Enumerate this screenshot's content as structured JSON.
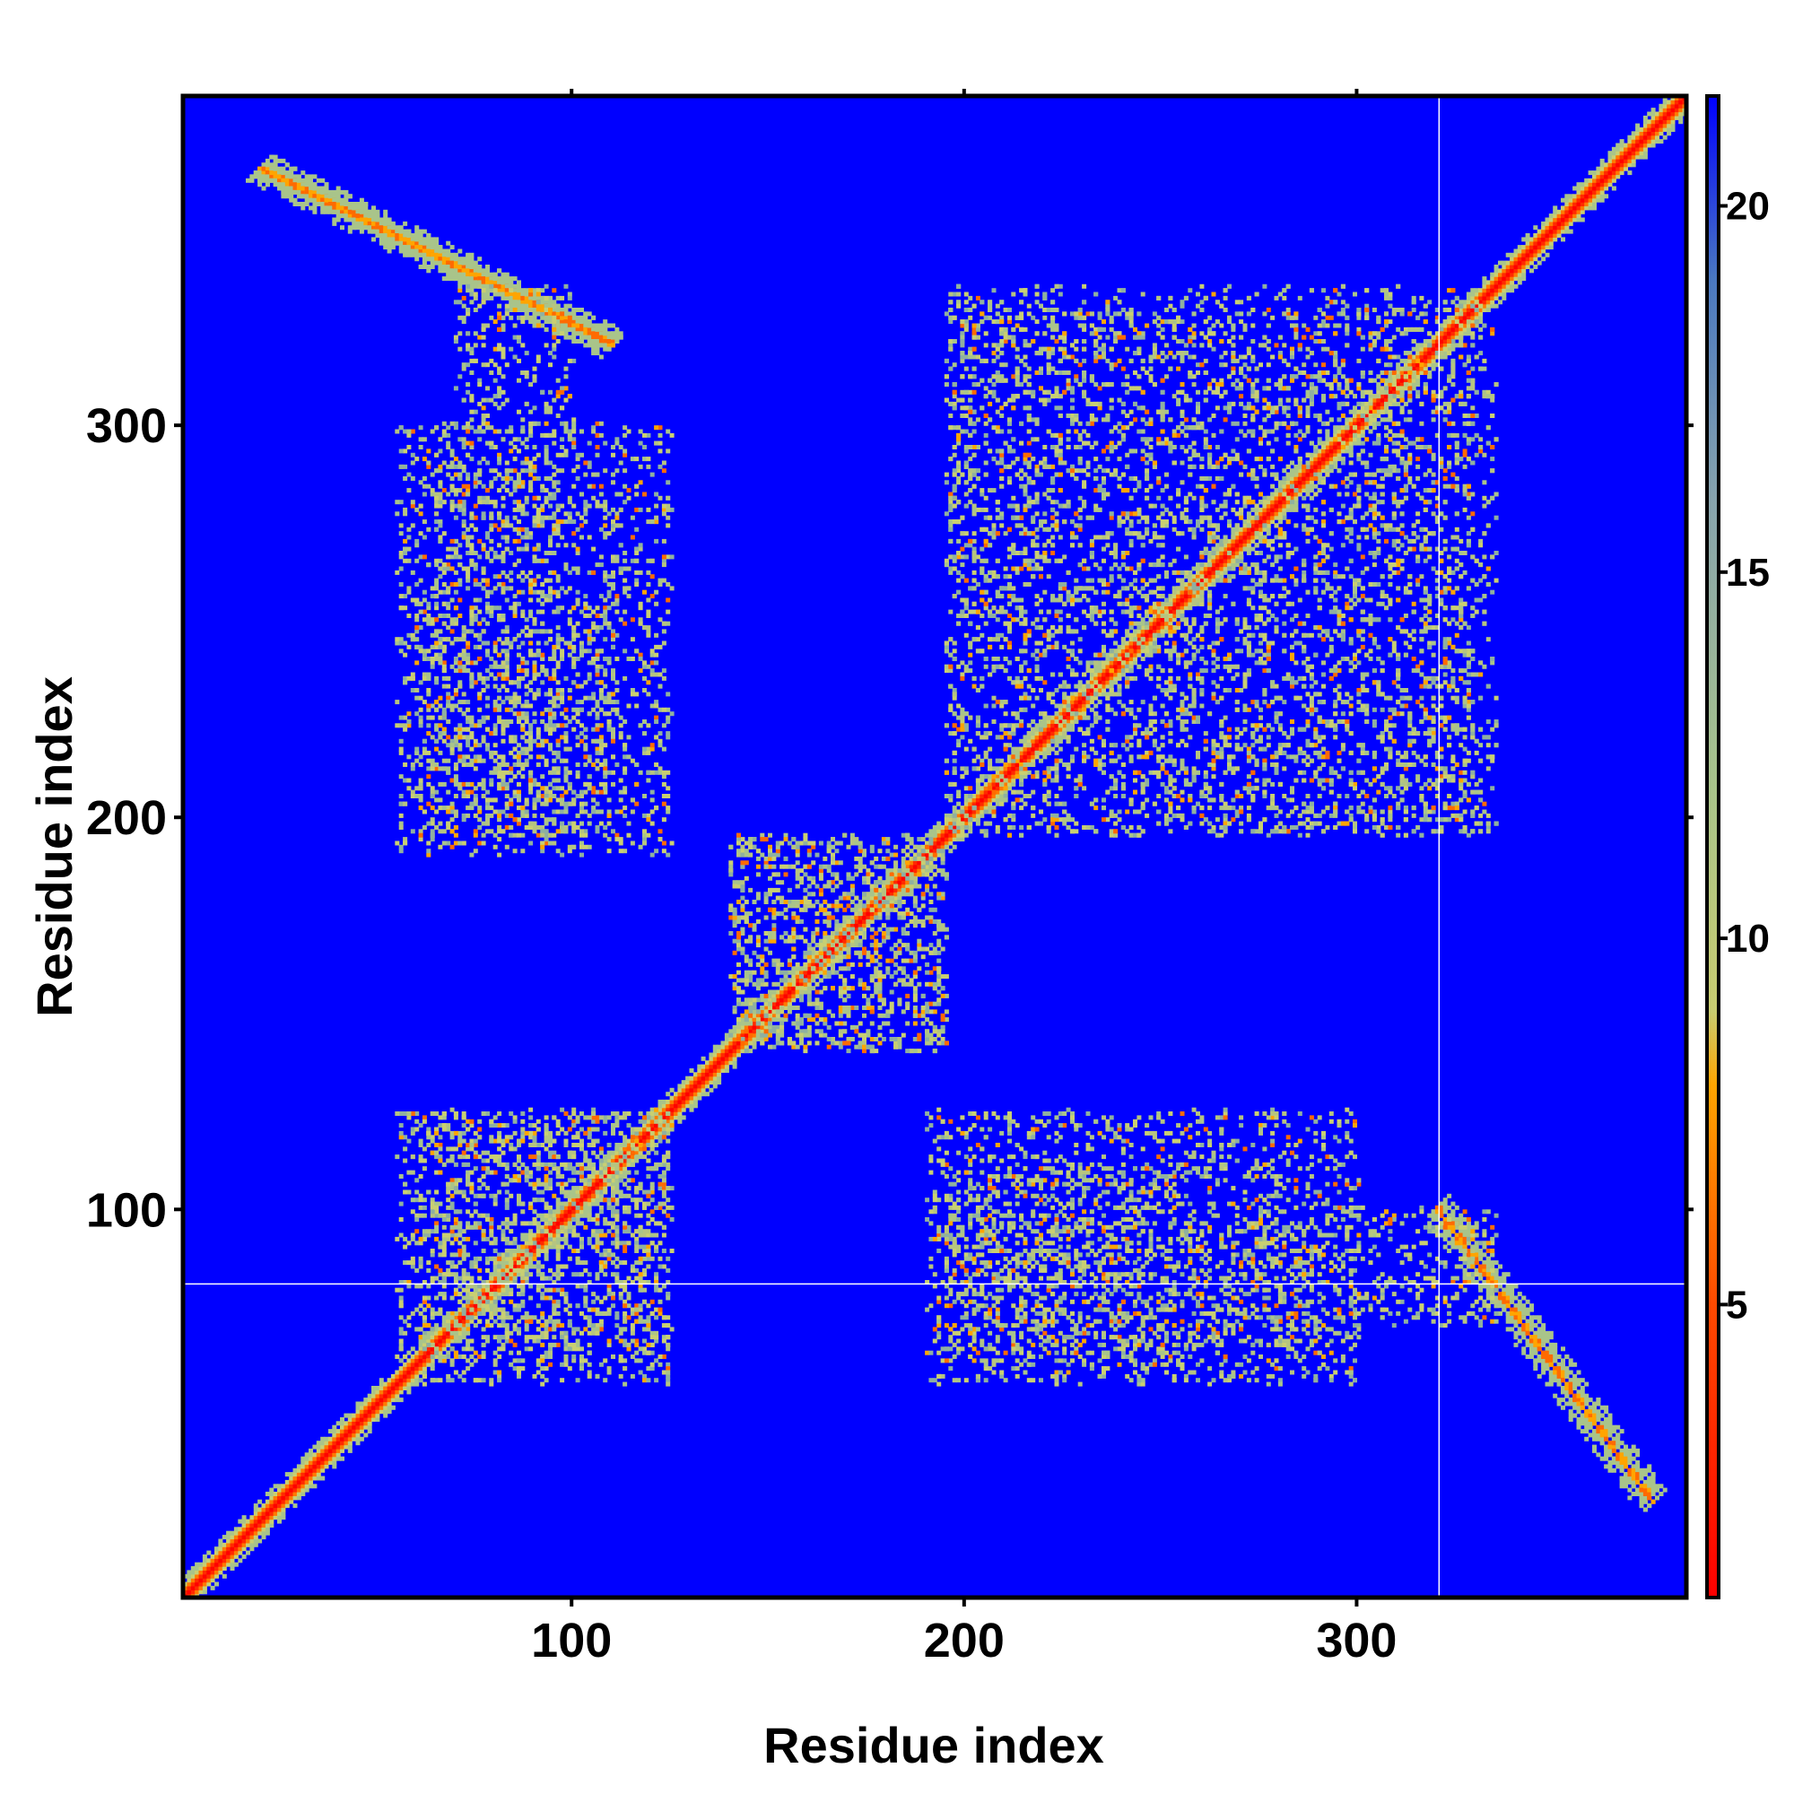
{
  "chart_data": {
    "type": "heatmap",
    "title": "",
    "xlabel": "Residue index",
    "ylabel": "Residue index",
    "xlim": [
      1,
      384
    ],
    "ylim": [
      1,
      384
    ],
    "x_ticks": [
      100,
      200,
      300
    ],
    "y_ticks": [
      100,
      200,
      300
    ],
    "colorbar": {
      "range": [
        1,
        21.5
      ],
      "ticks": [
        5,
        10,
        15,
        20
      ],
      "color_stops": [
        {
          "value": 1,
          "color": "#ff0000"
        },
        {
          "value": 5,
          "color": "#ff4a00"
        },
        {
          "value": 8,
          "color": "#ffa500"
        },
        {
          "value": 9,
          "color": "#c8cc70"
        },
        {
          "value": 12,
          "color": "#a9c48a"
        },
        {
          "value": 16,
          "color": "#87a3ad"
        },
        {
          "value": 19,
          "color": "#4a78c0"
        },
        {
          "value": 21.5,
          "color": "#0000ff"
        }
      ]
    },
    "background_color": "#0000ff",
    "reference_lines": {
      "x": 321,
      "y": 81
    },
    "features": [
      {
        "kind": "diagonal",
        "description": "self-contact band along residue i = j",
        "from": [
          1,
          1
        ],
        "to": [
          384,
          384
        ]
      },
      {
        "kind": "antiparallel",
        "x_range": [
          20,
          110
        ],
        "y_range": [
          320,
          365
        ]
      },
      {
        "kind": "antiparallel",
        "x_range": [
          320,
          375
        ],
        "y_range": [
          25,
          100
        ]
      },
      {
        "kind": "contact_cluster",
        "x_range": [
          140,
          195
        ],
        "y_range": [
          140,
          195
        ]
      },
      {
        "kind": "contact_cluster",
        "x_range": [
          55,
          125
        ],
        "y_range": [
          60,
          125
        ]
      },
      {
        "kind": "contact_cluster",
        "x_range": [
          195,
          255
        ],
        "y_range": [
          60,
          110
        ]
      },
      {
        "kind": "contact_cluster",
        "x_range": [
          255,
          290
        ],
        "y_range": [
          65,
          95
        ]
      },
      {
        "kind": "contact_cluster",
        "x_range": [
          295,
          335
        ],
        "y_range": [
          70,
          100
        ]
      },
      {
        "kind": "contact_cluster",
        "x_range": [
          55,
          125
        ],
        "y_range": [
          190,
          300
        ]
      },
      {
        "kind": "contact_cluster",
        "x_range": [
          195,
          330
        ],
        "y_range": [
          195,
          335
        ]
      }
    ]
  }
}
